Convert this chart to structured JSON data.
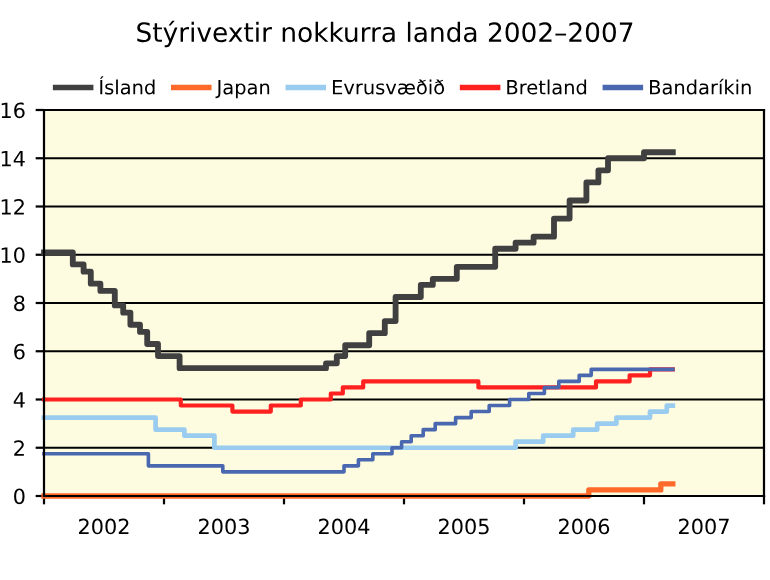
{
  "chart_data": {
    "type": "step",
    "title": "Stýrivextir nokkurra landa 2002–2007",
    "xlim": [
      2002,
      2008
    ],
    "xticks": [
      {
        "value": 2002,
        "label": null
      },
      {
        "value": 2002.5,
        "label": "2002"
      },
      {
        "value": 2003,
        "label": null
      },
      {
        "value": 2003.5,
        "label": "2003"
      },
      {
        "value": 2004,
        "label": null
      },
      {
        "value": 2004.5,
        "label": "2004"
      },
      {
        "value": 2005,
        "label": null
      },
      {
        "value": 2005.5,
        "label": "2005"
      },
      {
        "value": 2006,
        "label": null
      },
      {
        "value": 2006.5,
        "label": "2006"
      },
      {
        "value": 2007,
        "label": null
      },
      {
        "value": 2007.5,
        "label": "2007"
      },
      {
        "value": 2008,
        "label": null
      }
    ],
    "ylim": [
      0,
      16
    ],
    "yticks": [
      0,
      2,
      4,
      6,
      8,
      10,
      12,
      14,
      16
    ],
    "grid": "y",
    "legend": "top",
    "marker": "none",
    "line_style": "solid",
    "series": [
      {
        "name": "Ísland",
        "color": "#404040",
        "x": [
          2002,
          2002.24,
          2002.33,
          2002.39,
          2002.47,
          2002.59,
          2002.66,
          2002.72,
          2002.8,
          2002.86,
          2002.95,
          2003.13,
          2004.35,
          2004.44,
          2004.51,
          2004.71,
          2004.84,
          2004.93,
          2005.14,
          2005.24,
          2005.44,
          2005.76,
          2005.93,
          2006.08,
          2006.25,
          2006.38,
          2006.52,
          2006.62,
          2006.7,
          2007.0,
          2007.24
        ],
        "values": [
          10.1,
          9.6,
          9.3,
          8.8,
          8.5,
          7.9,
          7.6,
          7.1,
          6.8,
          6.3,
          5.8,
          5.3,
          5.5,
          5.8,
          6.25,
          6.75,
          7.25,
          8.25,
          8.75,
          9.0,
          9.5,
          10.25,
          10.5,
          10.75,
          11.5,
          12.25,
          13.0,
          13.5,
          14.0,
          14.25,
          14.25
        ]
      },
      {
        "name": "Japan",
        "color": "#ff6a2a",
        "x": [
          2002,
          2006.54,
          2007.14,
          2007.24
        ],
        "values": [
          0,
          0.25,
          0.5,
          0.5
        ]
      },
      {
        "name": "Evrusvæðið",
        "color": "#99ccee",
        "x": [
          2002,
          2002.93,
          2003.17,
          2003.42,
          2005.93,
          2006.16,
          2006.41,
          2006.61,
          2006.77,
          2007.05,
          2007.19,
          2007.24
        ],
        "values": [
          3.25,
          2.75,
          2.5,
          2.0,
          2.25,
          2.5,
          2.75,
          3.0,
          3.25,
          3.5,
          3.75,
          3.75
        ]
      },
      {
        "name": "Bretland",
        "color": "#ff2020",
        "x": [
          2002,
          2003.14,
          2003.57,
          2003.89,
          2004.14,
          2004.39,
          2004.49,
          2004.66,
          2005.62,
          2006.6,
          2006.88,
          2007.05,
          2007.24
        ],
        "values": [
          4.0,
          3.75,
          3.5,
          3.75,
          4.0,
          4.25,
          4.5,
          4.75,
          4.5,
          4.75,
          5.0,
          5.25,
          5.25
        ]
      },
      {
        "name": "Bandaríkin",
        "color": "#4a68b0",
        "x": [
          2002,
          2002.87,
          2003.49,
          2004.5,
          2004.62,
          2004.74,
          2004.9,
          2004.98,
          2005.06,
          2005.16,
          2005.26,
          2005.43,
          2005.56,
          2005.71,
          2005.88,
          2006.04,
          2006.17,
          2006.29,
          2006.46,
          2006.56,
          2007.24
        ],
        "values": [
          1.75,
          1.25,
          1.0,
          1.25,
          1.5,
          1.75,
          2.0,
          2.25,
          2.5,
          2.75,
          3.0,
          3.25,
          3.5,
          3.75,
          4.0,
          4.25,
          4.5,
          4.75,
          5.0,
          5.25,
          5.25
        ]
      }
    ]
  }
}
